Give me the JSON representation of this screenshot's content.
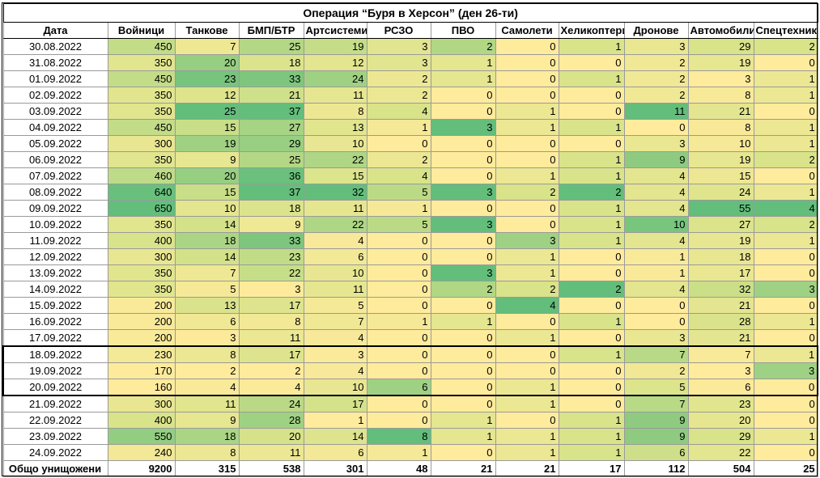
{
  "title": "Операция “Буря в Херсон” (ден 26-ти)",
  "headers": [
    "Дата",
    "Войници",
    "Танкове",
    "БМП/БТР",
    "Артсистеми",
    "РСЗО",
    "ПВО",
    "Самолети",
    "Хеликоптери",
    "Дронове",
    "Автомобили",
    "Спецтехника"
  ],
  "rows": [
    {
      "date": "30.08.2022",
      "values": [
        450,
        7,
        25,
        19,
        3,
        2,
        0,
        1,
        3,
        29,
        2
      ]
    },
    {
      "date": "31.08.2022",
      "values": [
        350,
        20,
        18,
        12,
        3,
        1,
        0,
        0,
        2,
        19,
        0
      ]
    },
    {
      "date": "01.09.2022",
      "values": [
        450,
        23,
        33,
        24,
        2,
        1,
        0,
        1,
        2,
        3,
        1
      ]
    },
    {
      "date": "02.09.2022",
      "values": [
        350,
        12,
        21,
        11,
        2,
        0,
        0,
        0,
        2,
        8,
        1
      ]
    },
    {
      "date": "03.09.2022",
      "values": [
        350,
        25,
        37,
        8,
        4,
        0,
        1,
        0,
        11,
        21,
        0
      ]
    },
    {
      "date": "04.09.2022",
      "values": [
        450,
        15,
        27,
        13,
        1,
        3,
        1,
        1,
        0,
        8,
        1
      ]
    },
    {
      "date": "05.09.2022",
      "values": [
        300,
        19,
        29,
        10,
        0,
        0,
        0,
        0,
        3,
        10,
        1
      ]
    },
    {
      "date": "06.09.2022",
      "values": [
        350,
        9,
        25,
        22,
        2,
        0,
        0,
        1,
        9,
        19,
        2
      ]
    },
    {
      "date": "07.09.2022",
      "values": [
        460,
        20,
        36,
        15,
        4,
        0,
        1,
        1,
        4,
        15,
        0
      ]
    },
    {
      "date": "08.09.2022",
      "values": [
        640,
        15,
        37,
        32,
        5,
        3,
        2,
        2,
        4,
        24,
        1
      ]
    },
    {
      "date": "09.09.2022",
      "values": [
        650,
        10,
        18,
        11,
        1,
        0,
        0,
        1,
        4,
        55,
        4
      ]
    },
    {
      "date": "10.09.2022",
      "values": [
        350,
        14,
        9,
        22,
        5,
        3,
        0,
        1,
        10,
        27,
        2
      ]
    },
    {
      "date": "11.09.2022",
      "values": [
        400,
        18,
        33,
        4,
        0,
        0,
        3,
        1,
        4,
        19,
        1
      ]
    },
    {
      "date": "12.09.2022",
      "values": [
        300,
        14,
        23,
        6,
        0,
        0,
        1,
        0,
        1,
        18,
        0
      ]
    },
    {
      "date": "13.09.2022",
      "values": [
        350,
        7,
        22,
        10,
        0,
        3,
        1,
        0,
        1,
        17,
        0
      ]
    },
    {
      "date": "14.09.2022",
      "values": [
        350,
        5,
        3,
        11,
        0,
        2,
        2,
        2,
        4,
        32,
        3
      ]
    },
    {
      "date": "15.09.2022",
      "values": [
        200,
        13,
        17,
        5,
        0,
        0,
        4,
        0,
        0,
        21,
        0
      ]
    },
    {
      "date": "16.09.2022",
      "values": [
        200,
        6,
        8,
        7,
        1,
        1,
        0,
        1,
        0,
        28,
        1
      ]
    },
    {
      "date": "17.09.2022",
      "values": [
        200,
        3,
        11,
        4,
        0,
        0,
        1,
        0,
        3,
        21,
        0
      ]
    },
    {
      "date": "18.09.2022",
      "values": [
        230,
        8,
        17,
        3,
        0,
        0,
        0,
        1,
        7,
        7,
        1
      ]
    },
    {
      "date": "19.09.2022",
      "values": [
        170,
        2,
        2,
        4,
        0,
        0,
        0,
        0,
        2,
        3,
        3
      ]
    },
    {
      "date": "20.09.2022",
      "values": [
        160,
        4,
        4,
        10,
        6,
        0,
        1,
        0,
        5,
        6,
        0
      ]
    },
    {
      "date": "21.09.2022",
      "values": [
        300,
        11,
        24,
        17,
        0,
        0,
        1,
        0,
        7,
        23,
        0
      ]
    },
    {
      "date": "22.09.2022",
      "values": [
        400,
        9,
        28,
        1,
        0,
        1,
        0,
        1,
        9,
        20,
        0
      ]
    },
    {
      "date": "23.09.2022",
      "values": [
        550,
        18,
        20,
        14,
        8,
        1,
        1,
        1,
        9,
        29,
        1
      ]
    },
    {
      "date": "24.09.2022",
      "values": [
        240,
        8,
        11,
        6,
        1,
        0,
        1,
        1,
        6,
        22,
        0
      ]
    }
  ],
  "totals": {
    "label": "Общо унищожени",
    "values": [
      9200,
      315,
      538,
      301,
      48,
      21,
      21,
      17,
      112,
      504,
      25
    ]
  },
  "highlight_rows": [
    "18.09.2022",
    "19.09.2022",
    "20.09.2022"
  ],
  "colors": {
    "low": "#ffeb9c",
    "mid": "#d8e38a",
    "high": "#63be7b"
  }
}
